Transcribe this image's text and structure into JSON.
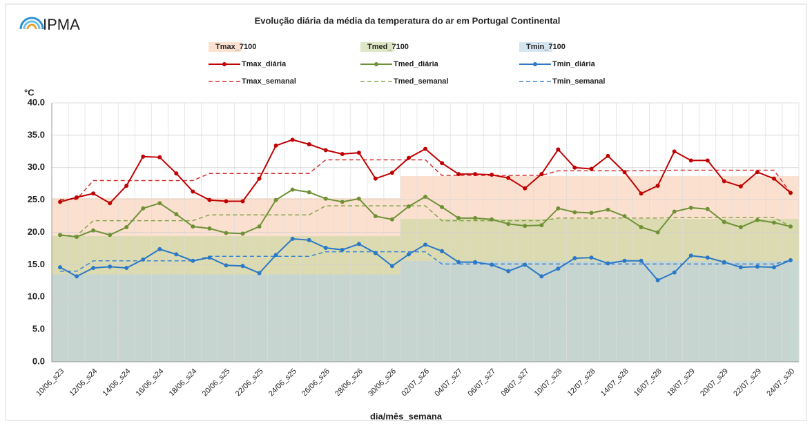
{
  "chart_data": {
    "type": "line",
    "logo": "IPMA",
    "title": "Evolução diária da média da temperatura do ar em Portugal Continental",
    "y_label": "°C",
    "x_label": "dia/mês_semana",
    "categories": [
      "10/06_s23",
      null,
      "12/06_s24",
      null,
      "14/06_s24",
      null,
      "16/06_s24",
      null,
      "18/06_s24",
      null,
      "20/06_s25",
      null,
      "22/06_s25",
      null,
      "24/06_s25",
      null,
      "26/06_s26",
      null,
      "28/06_s26",
      null,
      "30/06_s26",
      null,
      "02/07_s26",
      null,
      "04/07_s27",
      null,
      "06/07_s27",
      null,
      "08/07_s27",
      null,
      "10/07_s28",
      null,
      "12/07_s28",
      null,
      "14/07_s28",
      null,
      "16/07_s28",
      null,
      "18/07_s29",
      null,
      "20/07_s29",
      null,
      "22/07_s29",
      null,
      "24/07_s30"
    ],
    "ylim": [
      0,
      40
    ],
    "yticks": [
      {
        "value": 0,
        "label": "0.0"
      },
      {
        "value": 5,
        "label": "5.0"
      },
      {
        "value": 10,
        "label": "10.0"
      },
      {
        "value": 15,
        "label": "15.0"
      },
      {
        "value": 20,
        "label": "20.0"
      },
      {
        "value": 25,
        "label": "25.0"
      },
      {
        "value": 30,
        "label": "30.0"
      },
      {
        "value": 35,
        "label": "35.0"
      },
      {
        "value": 40,
        "label": "40.0"
      }
    ],
    "grid": true,
    "series": [
      {
        "name": "Tmax_7100",
        "style": "area",
        "color": "#f9cdb0",
        "values": [
          25.3,
          25.3,
          25.3,
          25.3,
          25.3,
          25.3,
          25.3,
          25.3,
          25.3,
          25.3,
          25.3,
          25.3,
          25.3,
          25.3,
          25.3,
          25.3,
          25.3,
          25.3,
          25.3,
          25.3,
          25.3,
          28.7,
          28.7,
          28.7,
          28.7,
          28.7,
          28.7,
          28.7,
          28.7,
          28.7,
          28.7,
          28.7,
          28.7,
          28.7,
          28.7,
          28.7,
          28.7,
          28.7,
          28.7,
          28.7,
          28.7,
          28.7,
          28.7,
          28.7,
          28.7
        ]
      },
      {
        "name": "Tmed_7100",
        "style": "area",
        "color": "#c6d79c",
        "values": [
          19.4,
          19.4,
          19.4,
          19.4,
          19.4,
          19.4,
          19.4,
          19.4,
          19.4,
          19.4,
          19.4,
          19.4,
          19.4,
          19.4,
          19.4,
          19.4,
          19.4,
          19.4,
          19.4,
          19.4,
          19.4,
          22.1,
          22.1,
          22.1,
          22.1,
          22.1,
          22.1,
          22.1,
          22.1,
          22.1,
          22.1,
          22.1,
          22.1,
          22.1,
          22.1,
          22.1,
          22.1,
          22.1,
          22.1,
          22.1,
          22.1,
          22.1,
          22.1,
          22.1,
          22.1
        ]
      },
      {
        "name": "Tmin_7100",
        "style": "area",
        "color": "#b9d3e6",
        "values": [
          13.5,
          13.5,
          13.5,
          13.5,
          13.5,
          13.5,
          13.5,
          13.5,
          13.5,
          13.5,
          13.5,
          13.5,
          13.5,
          13.5,
          13.5,
          13.5,
          13.5,
          13.5,
          13.5,
          13.5,
          13.5,
          15.6,
          15.6,
          15.6,
          15.6,
          15.6,
          15.6,
          15.6,
          15.6,
          15.6,
          15.6,
          15.6,
          15.6,
          15.6,
          15.6,
          15.6,
          15.6,
          15.6,
          15.6,
          15.6,
          15.6,
          15.6,
          15.6,
          15.6,
          15.6
        ]
      },
      {
        "name": "Tmax_diária",
        "style": "line-marker",
        "color": "#c00000",
        "values": [
          24.7,
          25.4,
          26.0,
          24.5,
          27.2,
          31.7,
          31.6,
          29.1,
          26.3,
          25.0,
          24.8,
          24.8,
          28.3,
          33.4,
          34.3,
          33.6,
          32.7,
          32.1,
          32.3,
          28.3,
          29.2,
          31.5,
          32.9,
          30.7,
          29.0,
          29.0,
          28.9,
          28.4,
          26.8,
          29.0,
          32.8,
          30.0,
          29.8,
          31.8,
          29.3,
          26.0,
          27.2,
          32.5,
          31.1,
          31.1,
          27.9,
          27.1,
          29.3,
          28.3,
          26.1
        ]
      },
      {
        "name": "Tmed_diária",
        "style": "line-marker",
        "color": "#6f9136",
        "values": [
          19.6,
          19.3,
          20.3,
          19.6,
          20.8,
          23.7,
          24.5,
          22.8,
          20.9,
          20.6,
          19.9,
          19.8,
          20.9,
          25.0,
          26.6,
          26.2,
          25.2,
          24.7,
          25.2,
          22.5,
          22.0,
          24.0,
          25.5,
          23.9,
          22.2,
          22.2,
          22.0,
          21.3,
          21.0,
          21.1,
          23.7,
          23.1,
          23.0,
          23.5,
          22.5,
          20.8,
          20.0,
          23.2,
          23.8,
          23.6,
          21.6,
          20.8,
          21.9,
          21.5,
          20.9
        ]
      },
      {
        "name": "Tmin_diária",
        "style": "line-marker",
        "color": "#2a78c6",
        "values": [
          14.6,
          13.2,
          14.5,
          14.7,
          14.5,
          15.8,
          17.4,
          16.6,
          15.6,
          16.1,
          14.9,
          14.8,
          13.7,
          16.5,
          19.0,
          18.8,
          17.6,
          17.3,
          18.2,
          16.8,
          14.8,
          16.6,
          18.1,
          17.1,
          15.4,
          15.4,
          15.0,
          14.0,
          15.0,
          13.2,
          14.4,
          16.0,
          16.1,
          15.2,
          15.6,
          15.6,
          12.6,
          13.8,
          16.4,
          16.1,
          15.4,
          14.6,
          14.7,
          14.6,
          15.7
        ]
      },
      {
        "name": "Tmax_semanal",
        "style": "dashed",
        "color": "#d03030",
        "values": [
          25.1,
          25.1,
          28.0,
          28.0,
          28.0,
          28.0,
          28.0,
          28.0,
          28.0,
          29.1,
          29.1,
          29.1,
          29.1,
          29.1,
          29.1,
          29.1,
          31.2,
          31.2,
          31.2,
          31.2,
          31.2,
          31.2,
          31.2,
          28.8,
          28.8,
          28.8,
          28.8,
          28.8,
          28.8,
          28.8,
          29.5,
          29.5,
          29.5,
          29.5,
          29.5,
          29.5,
          29.5,
          29.6,
          29.6,
          29.6,
          29.6,
          29.6,
          29.6,
          29.6,
          26.1
        ]
      },
      {
        "name": "Tmed_semanal",
        "style": "dashed",
        "color": "#86a34a",
        "values": [
          19.5,
          19.5,
          21.8,
          21.8,
          21.8,
          21.8,
          21.8,
          21.8,
          21.8,
          22.7,
          22.7,
          22.7,
          22.7,
          22.7,
          22.7,
          22.7,
          24.1,
          24.1,
          24.1,
          24.1,
          24.1,
          24.1,
          24.1,
          21.8,
          21.8,
          21.8,
          21.8,
          21.8,
          21.8,
          21.8,
          22.2,
          22.2,
          22.2,
          22.2,
          22.2,
          22.2,
          22.2,
          22.3,
          22.3,
          22.3,
          22.3,
          22.3,
          22.3,
          22.3,
          20.9
        ]
      },
      {
        "name": "Tmin_semanal",
        "style": "dashed",
        "color": "#3a86d0",
        "values": [
          14.0,
          14.0,
          15.6,
          15.6,
          15.6,
          15.6,
          15.6,
          15.6,
          15.6,
          16.3,
          16.3,
          16.3,
          16.3,
          16.3,
          16.3,
          16.3,
          17.0,
          17.0,
          17.0,
          17.0,
          17.0,
          17.0,
          17.0,
          15.1,
          15.1,
          15.1,
          15.1,
          15.1,
          15.1,
          15.1,
          15.1,
          15.1,
          15.1,
          15.1,
          15.1,
          15.1,
          15.1,
          15.1,
          15.1,
          15.1,
          15.1,
          15.1,
          15.1,
          15.1,
          15.7
        ]
      }
    ]
  }
}
